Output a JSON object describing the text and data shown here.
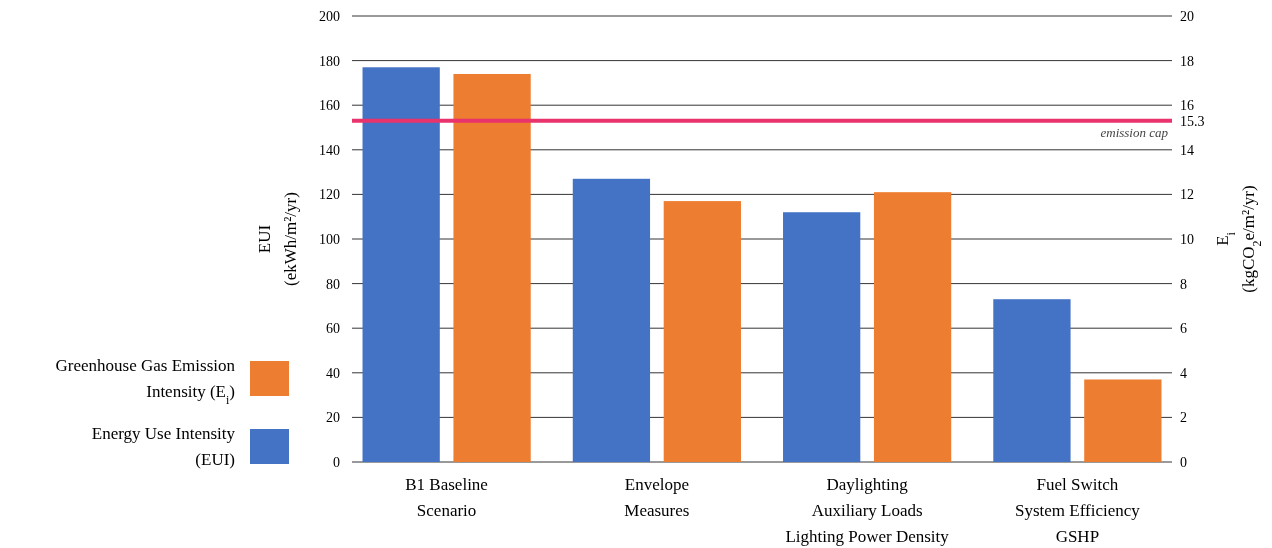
{
  "chart_data": {
    "type": "bar",
    "ylabel": "EUI\n(ekWh/m²/yr)",
    "y2label": "E$_{i}$\n(kgCO$_{2}$e/m²/yr)",
    "categories": [
      "B1 Baseline\nScenario",
      "Envelope\nMeasures",
      "Daylighting\nAuxiliary Loads\nLighting Power Density",
      "Fuel Switch\nSystem Efficiency\nGSHP"
    ],
    "series": [
      {
        "name": "Energy Use Intensity\n(EUI)",
        "color": "#4472c4",
        "values": [
          177,
          127,
          112,
          73
        ]
      },
      {
        "name": "Greenhouse Gas Emission\nIntensity (E$_{i}$)",
        "color": "#ed7d31",
        "axis": "y2",
        "values": [
          17.4,
          11.7,
          12.1,
          3.7
        ]
      }
    ],
    "ylim": [
      0,
      200
    ],
    "yticks": [
      0,
      20,
      40,
      60,
      80,
      100,
      120,
      140,
      160,
      180,
      200
    ],
    "y2lim": [
      0,
      20
    ],
    "y2ticks": [
      0,
      2,
      4,
      6,
      8,
      10,
      12,
      14,
      15.3,
      16,
      18,
      20
    ],
    "ref_lines": [
      {
        "axis": "y2",
        "value": 15.3,
        "label": "emission cap",
        "color": "#e8336d"
      }
    ],
    "grid": "y",
    "legend": "left"
  }
}
